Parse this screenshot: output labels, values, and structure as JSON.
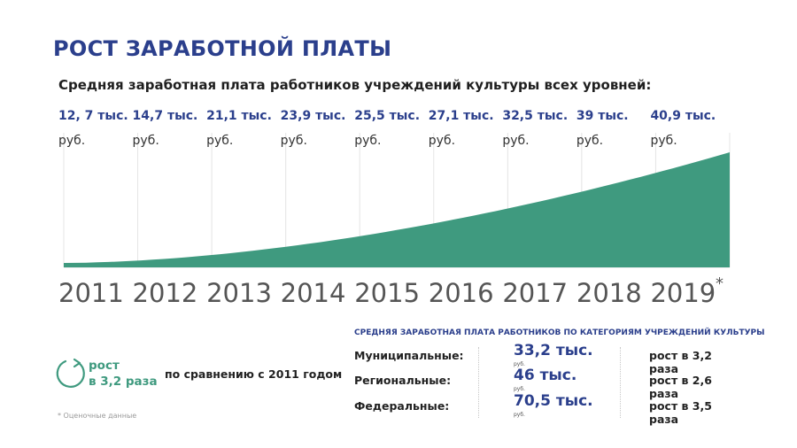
{
  "header": {
    "title": "РОСТ ЗАРАБОТНОЙ ПЛАТЫ",
    "subtitle": "Средняя заработная плата работников учреждений культуры всех уровней:"
  },
  "chart_data": {
    "type": "area",
    "categories": [
      "2011",
      "2012",
      "2013",
      "2014",
      "2015",
      "2016",
      "2017",
      "2018",
      "2019"
    ],
    "values": [
      12.7,
      14.7,
      21.1,
      23.9,
      25.5,
      27.1,
      32.5,
      39,
      40.9
    ],
    "value_labels": [
      "12, 7 тыс.",
      "14,7 тыс.",
      "21,1 тыс.",
      "23,9 тыс.",
      "25,5 тыс.",
      "27,1 тыс.",
      "32,5 тыс.",
      "39 тыс.",
      "40,9 тыс."
    ],
    "unit_label": "руб.",
    "last_year_mark": "*",
    "title": "Средняя заработная плата работников учреждений культуры всех уровней:",
    "grid": true,
    "area_color": "#3f9a7f"
  },
  "growth": {
    "line1": "рост",
    "line2": "в 3,2 раза",
    "comparison": "по сравнению с 2011 годом",
    "icon": "circular-arrow-icon",
    "color": "#3f9a7f"
  },
  "categories_table": {
    "title": "СРЕДНЯЯ ЗАРАБОТНАЯ ПЛАТА РАБОТНИКОВ ПО КАТЕГОРИЯМ УЧРЕЖДЕНИЙ КУЛЬТУРЫ",
    "rows": [
      {
        "name": "Муниципальные:",
        "value": "33,2 тыс.",
        "unit": "руб.",
        "growth": "рост в 3,2 раза"
      },
      {
        "name": "Региональные:",
        "value": "46 тыс.",
        "unit": "руб.",
        "growth": "рост в 2,6 раза"
      },
      {
        "name": "Федеральные:",
        "value": "70,5 тыс.",
        "unit": "руб.",
        "growth": "рост в 3,5 раза"
      }
    ]
  },
  "footnote": "* Оценочные данные",
  "colors": {
    "title_blue": "#2b3f8c",
    "green": "#3f9a7f",
    "grid": "#e4e4e4"
  }
}
